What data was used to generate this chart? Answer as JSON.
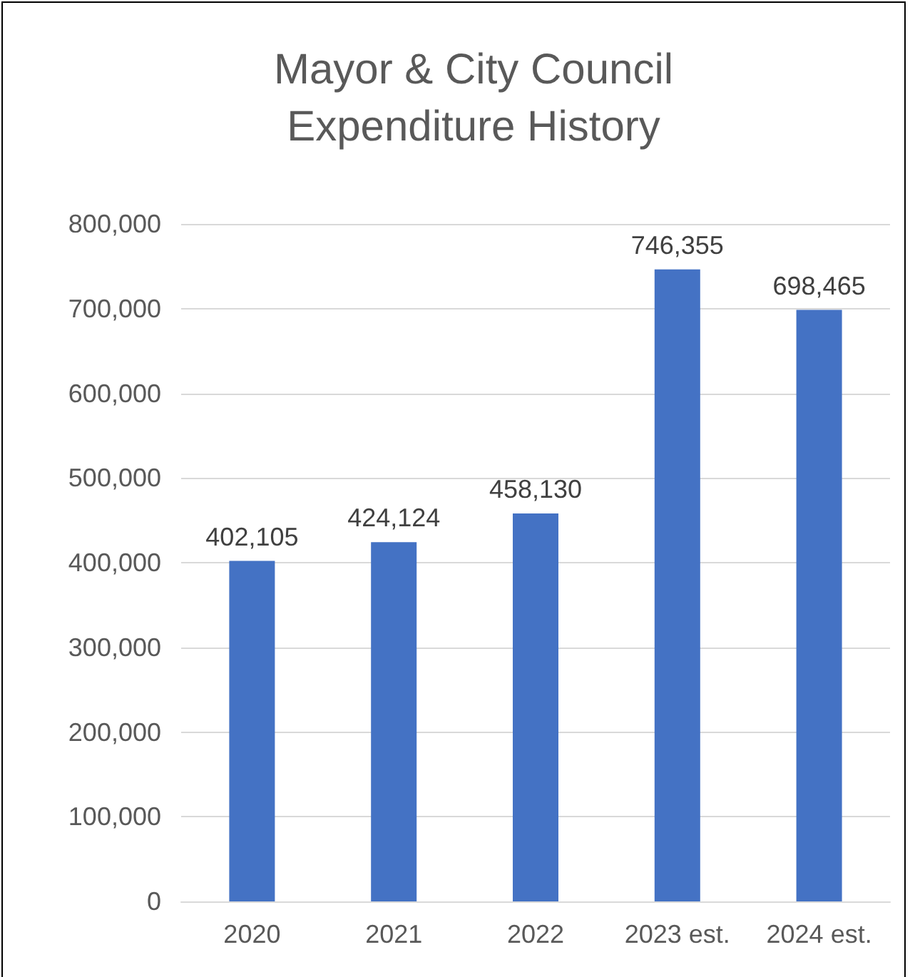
{
  "chart_data": {
    "type": "bar",
    "title": "Mayor & City Council\nExpenditure History",
    "categories": [
      "2020",
      "2021",
      "2022",
      "2023 est.",
      "2024 est."
    ],
    "values": [
      402105,
      424124,
      458130,
      746355,
      698465
    ],
    "value_labels": [
      "402,105",
      "424,124",
      "458,130",
      "746,355",
      "698,465"
    ],
    "color": "#4472c4",
    "ylim": [
      0,
      800000
    ],
    "yticks": [
      0,
      {
        "value": 100000,
        "label": "100,000"
      },
      {
        "value": 200000,
        "label": "200,000"
      },
      {
        "value": 300000,
        "label": "300,000"
      },
      {
        "value": 400000,
        "label": "400,000"
      },
      {
        "value": 500000,
        "label": "500,000"
      },
      {
        "value": 600000,
        "label": "600,000"
      },
      {
        "value": 700000,
        "label": "700,000"
      },
      {
        "value": 800000,
        "label": "800,000"
      }
    ],
    "grid": "y"
  }
}
